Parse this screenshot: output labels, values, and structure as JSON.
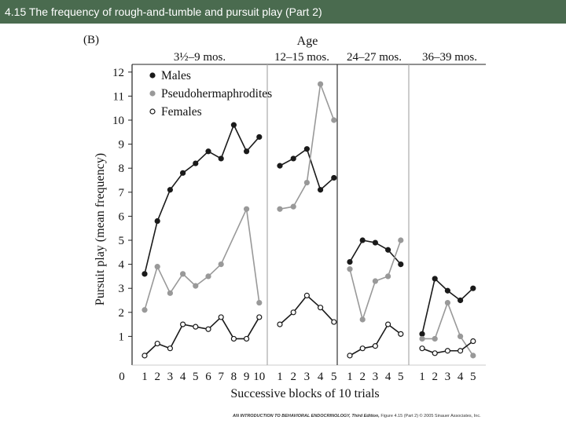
{
  "slide": {
    "title": "4.15 The frequency of rough-and-tumble and pursuit play (Part 2)"
  },
  "footer": {
    "book": "AN INTRODUCTION TO BEHAVIORAL ENDOCRINOLOGY, Third Edition,",
    "rest": "Figure 4.15 (Part 2) © 2005 Sinauer Associates, Inc."
  },
  "colors": {
    "males": "#1a1a1a",
    "pseudo": "#999999",
    "females": "#1a1a1a",
    "divider_dark": "#333333",
    "divider_light": "#aaaaaa"
  },
  "chart_data": {
    "type": "line",
    "panel_label": "(B)",
    "title": "Age",
    "ylabel": "Pursuit play (mean frequency)",
    "xlabel": "Successive blocks of 10 trials",
    "ylim": [
      0,
      12
    ],
    "yticks": [
      1,
      2,
      3,
      4,
      5,
      6,
      7,
      8,
      9,
      10,
      11,
      12
    ],
    "origin_label": "0",
    "legend_position": "top-left",
    "legend": [
      {
        "name": "Males",
        "marker": "filled"
      },
      {
        "name": "Pseudohermaphrodites",
        "marker": "gray"
      },
      {
        "name": "Females",
        "marker": "open"
      }
    ],
    "panels": [
      {
        "age": "3½–9 mos.",
        "x": [
          1,
          2,
          3,
          4,
          5,
          6,
          7,
          8,
          9,
          10
        ],
        "series": [
          {
            "name": "Males",
            "values": [
              3.6,
              5.8,
              7.1,
              7.8,
              8.2,
              8.7,
              8.4,
              9.8,
              8.7,
              9.3
            ]
          },
          {
            "name": "Pseudohermaphrodites",
            "values": [
              2.1,
              3.9,
              2.8,
              3.6,
              3.1,
              3.5,
              4.0,
              null,
              6.3,
              2.4
            ]
          },
          {
            "name": "Females",
            "values": [
              0.2,
              0.7,
              0.5,
              1.5,
              1.4,
              1.3,
              1.8,
              0.9,
              0.9,
              1.8
            ]
          }
        ]
      },
      {
        "age": "12–15 mos.",
        "x": [
          1,
          2,
          3,
          4,
          5
        ],
        "series": [
          {
            "name": "Males",
            "values": [
              8.1,
              8.4,
              8.8,
              7.1,
              7.6
            ]
          },
          {
            "name": "Pseudohermaphrodites",
            "values": [
              6.3,
              6.4,
              7.4,
              11.5,
              10.0
            ]
          },
          {
            "name": "Females",
            "values": [
              1.5,
              2.0,
              2.7,
              2.2,
              1.6
            ]
          }
        ]
      },
      {
        "age": "24–27 mos.",
        "x": [
          1,
          2,
          3,
          4,
          5
        ],
        "series": [
          {
            "name": "Males",
            "values": [
              4.1,
              5.0,
              4.9,
              4.6,
              4.0
            ]
          },
          {
            "name": "Pseudohermaphrodites",
            "values": [
              3.8,
              1.7,
              3.3,
              3.5,
              5.0
            ]
          },
          {
            "name": "Females",
            "values": [
              0.2,
              0.5,
              0.6,
              1.5,
              1.1
            ]
          }
        ]
      },
      {
        "age": "36–39 mos.",
        "x": [
          1,
          2,
          3,
          4,
          5
        ],
        "series": [
          {
            "name": "Males",
            "values": [
              1.1,
              3.4,
              2.9,
              2.5,
              3.0
            ]
          },
          {
            "name": "Pseudohermaphrodites",
            "values": [
              0.9,
              0.9,
              2.4,
              1.0,
              0.2
            ]
          },
          {
            "name": "Females",
            "values": [
              0.5,
              0.3,
              0.4,
              0.4,
              0.8
            ]
          }
        ]
      }
    ]
  }
}
